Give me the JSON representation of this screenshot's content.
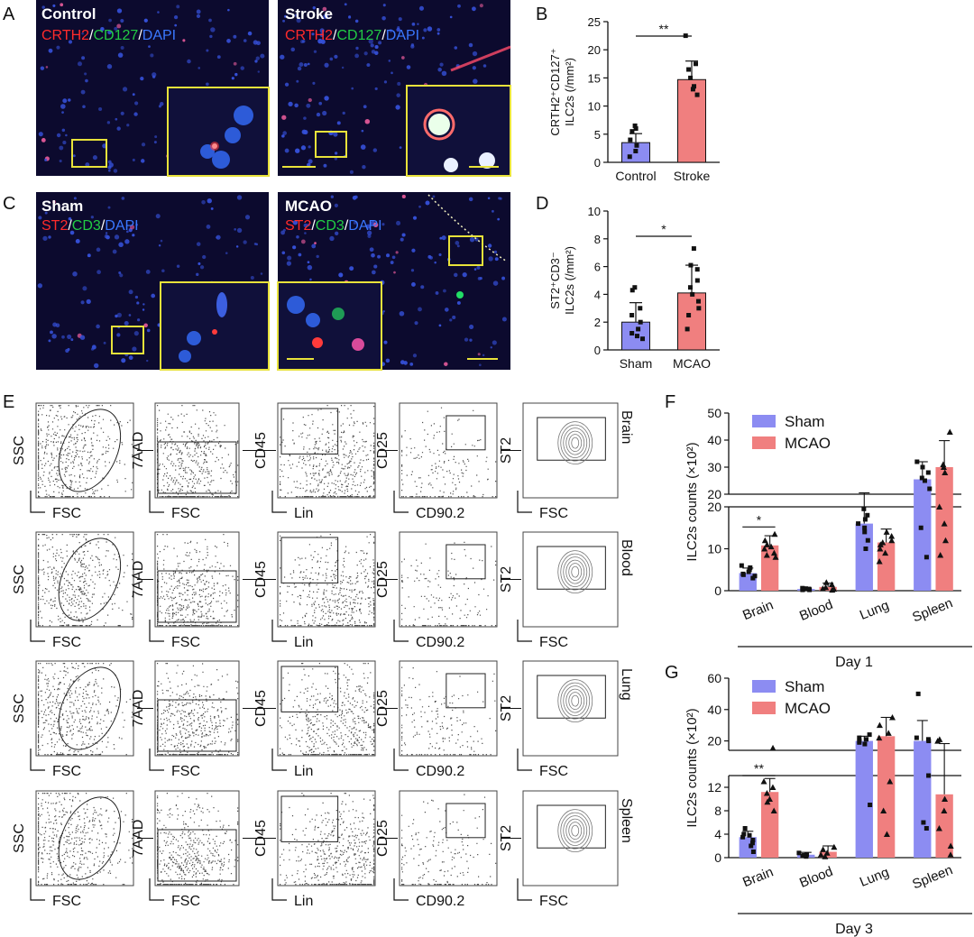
{
  "panel_letters": [
    "A",
    "B",
    "C",
    "D",
    "E",
    "F",
    "G"
  ],
  "micrographs": {
    "A_left": {
      "title": "Control",
      "markers": [
        "CRTH2",
        "/",
        "CD127",
        "/",
        "DAPI"
      ]
    },
    "A_right": {
      "title": "Stroke",
      "markers": [
        "CRTH2",
        "/",
        "CD127",
        "/",
        "DAPI"
      ]
    },
    "C_left": {
      "title": "Sham",
      "markers": [
        "ST2",
        "/",
        "CD3",
        "/",
        "DAPI"
      ]
    },
    "C_right": {
      "title": "MCAO",
      "markers": [
        "ST2",
        "/",
        "CD3",
        "/",
        "DAPI"
      ]
    }
  },
  "colors": {
    "red_stain": "#ff2b2b",
    "green_stain": "#22cc44",
    "blue_stain": "#3a78ff",
    "sham_bar": "#8c8cf2",
    "mcao_bar": "#f07f7f",
    "inset_box": "#e8e23a"
  },
  "flow": {
    "tissues": [
      "Brain",
      "Blood",
      "Lung",
      "Spleen"
    ],
    "columns": [
      {
        "ylabel": "SSC",
        "xlabel": "FSC"
      },
      {
        "ylabel": "7AAD",
        "xlabel": "FSC"
      },
      {
        "ylabel": "CD45",
        "xlabel": "Lin"
      },
      {
        "ylabel": "CD25",
        "xlabel": "CD90.2"
      },
      {
        "ylabel": "ST2",
        "xlabel": "FSC"
      }
    ]
  },
  "chart_data": [
    {
      "id": "B",
      "type": "bar",
      "categories": [
        "Control",
        "Stroke"
      ],
      "values": [
        3.5,
        14.7
      ],
      "errors": [
        1.6,
        3.3
      ],
      "points": [
        [
          2.0,
          3.0,
          4.0,
          5.5,
          6.5,
          6.0,
          1.0
        ],
        [
          12.0,
          13.0,
          15.0,
          16.5,
          17.5,
          13.5,
          22.5
        ]
      ],
      "ylabel_lines": [
        "CRTH2⁺CD127⁺",
        "ILC2s (/mm²)"
      ],
      "yticks": [
        "0",
        "5",
        "10",
        "15",
        "20",
        "25"
      ],
      "ylim": [
        0,
        25
      ],
      "significance": "**",
      "bar_colors": [
        "#8c8cf2",
        "#f07f7f"
      ]
    },
    {
      "id": "D",
      "type": "bar",
      "categories": [
        "Sham",
        "MCAO"
      ],
      "values": [
        2.0,
        4.1
      ],
      "errors": [
        1.4,
        2.0
      ],
      "points": [
        [
          0.8,
          1.0,
          1.5,
          2.0,
          3.0,
          4.3,
          4.5,
          2.5,
          1.2
        ],
        [
          1.5,
          2.5,
          3.5,
          4.0,
          4.5,
          5.0,
          5.8,
          3.0,
          6.1,
          7.3
        ]
      ],
      "ylabel_lines": [
        "ST2⁺CD3⁻",
        "ILC2s (/mm²)"
      ],
      "yticks": [
        "0",
        "2",
        "4",
        "6",
        "8",
        "10"
      ],
      "ylim": [
        0,
        10
      ],
      "significance": "*",
      "bar_colors": [
        "#8c8cf2",
        "#f07f7f"
      ]
    },
    {
      "id": "F",
      "type": "bar",
      "categories": [
        "Brain",
        "Blood",
        "Lung",
        "Spleen"
      ],
      "series": [
        {
          "name": "Sham",
          "values": [
            4.2,
            0.4,
            16.0,
            25.5
          ],
          "errors": [
            1.2,
            0.4,
            4.5,
            6.5
          ],
          "points": [
            [
              3.0,
              3.5,
              4.0,
              4.5,
              5.0,
              5.5,
              6.0,
              3.8
            ],
            [
              0.2,
              0.3,
              0.5,
              0.6,
              0.4,
              0.2
            ],
            [
              10.0,
              14.0,
              16.0,
              18.0,
              12.0,
              17.0,
              15.0,
              19.5
            ],
            [
              8.0,
              15.0,
              22.0,
              25.0,
              28.0,
              30.0,
              32.0,
              26.0
            ]
          ]
        },
        {
          "name": "MCAO",
          "values": [
            10.8,
            0.9,
            11.5,
            30.0
          ],
          "errors": [
            2.3,
            0.9,
            3.2,
            9.8
          ],
          "points": [
            [
              8.0,
              9.0,
              10.0,
              11.0,
              12.0,
              13.5,
              8.5,
              10.5
            ],
            [
              0.2,
              0.4,
              0.8,
              1.5,
              2.0,
              0.5
            ],
            [
              7.0,
              9.0,
              11.0,
              12.0,
              13.0,
              10.0,
              14.0,
              11.5
            ],
            [
              8.5,
              12.0,
              16.0,
              28.0,
              30.0,
              31.0,
              43.0,
              20.0
            ]
          ]
        }
      ],
      "ylabel": "ILC2s counts (×10²)",
      "yticks_bottom": [
        "0",
        "10",
        "20"
      ],
      "yticks_top": [
        "20",
        "30",
        "40",
        "50"
      ],
      "ylim": [
        0,
        50
      ],
      "significance": "*",
      "group_label": "Day 1"
    },
    {
      "id": "G",
      "type": "bar",
      "categories": [
        "Brain",
        "Blood",
        "Lung",
        "Spleen"
      ],
      "series": [
        {
          "name": "Sham",
          "values": [
            3.5,
            0.5,
            20.0,
            20.0
          ],
          "errors": [
            1.0,
            0.4,
            3.0,
            13.0
          ],
          "points": [
            [
              1.0,
              2.0,
              3.0,
              3.5,
              4.0,
              5.0,
              2.5,
              3.8
            ],
            [
              0.2,
              0.3,
              0.5,
              0.8,
              0.4
            ],
            [
              9.0,
              18.0,
              20.0,
              22.0,
              24.0,
              19.0,
              21.0
            ],
            [
              5.0,
              6.0,
              14.0,
              20.0,
              22.0,
              50.0,
              21.0
            ]
          ]
        },
        {
          "name": "MCAO",
          "values": [
            11.2,
            1.0,
            23.0,
            10.8
          ],
          "errors": [
            2.3,
            1.0,
            12.0,
            7.5
          ],
          "points": [
            [
              8.0,
              9.5,
              11.0,
              12.0,
              13.0,
              15.5,
              10.0
            ],
            [
              0.2,
              0.5,
              0.8,
              1.4,
              1.8
            ],
            [
              4.0,
              8.0,
              13.0,
              22.0,
              30.0,
              35.0,
              25.0
            ],
            [
              0.5,
              2.0,
              5.0,
              8.0,
              10.0,
              20.0,
              21.0
            ]
          ]
        }
      ],
      "ylabel": "ILC2s counts (×10²)",
      "yticks_bottom": [
        "0",
        "4",
        "8",
        "12"
      ],
      "yticks_top": [
        "20",
        "40",
        "60"
      ],
      "ylim": [
        0,
        60
      ],
      "significance": "**",
      "group_label": "Day 3"
    }
  ]
}
